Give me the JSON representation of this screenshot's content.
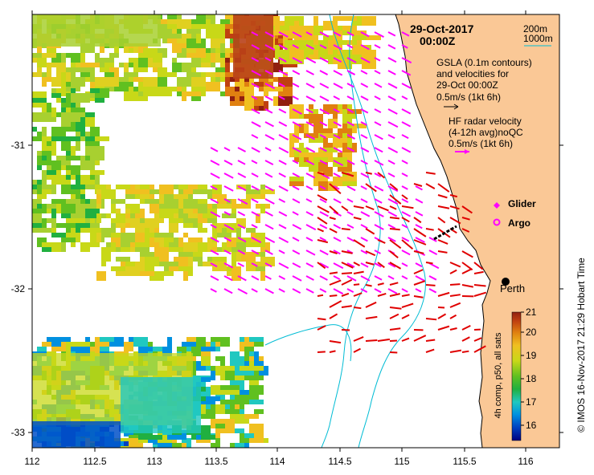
{
  "map": {
    "title_date": "29-Oct-2017",
    "title_time": "00:00Z",
    "longitude_ticks": [
      "112",
      "112.5",
      "113",
      "113.5",
      "114",
      "114.5",
      "115",
      "115.5",
      "116"
    ],
    "latitude_ticks": [
      "-31",
      "-32",
      "-33"
    ],
    "city_label": "Perth",
    "side_caption": "© IMOS 16-Nov-2017 21:29 Hobart Time"
  },
  "isobath_legend": {
    "line1": "200m",
    "line2": "1000m",
    "color_200m": "#00bcd4",
    "color_1000m": "#00bcd4"
  },
  "gsla_legend": {
    "line1": "GSLA (0.1m contours)",
    "line2": "and velocities for",
    "line3": "29-Oct 00:00Z",
    "line4": "0.5m/s (1kt 6h)"
  },
  "hf_legend": {
    "line1": "HF radar velocity",
    "line2": "(4-12h avg)noQC",
    "line3": "0.5m/s (1kt 6h)"
  },
  "markers_legend": {
    "glider_label": "Glider",
    "argo_label": "Argo"
  },
  "colorbar": {
    "label": "4h comp, p50, all sats",
    "ticks": [
      "21",
      "20",
      "19",
      "18",
      "17",
      "16"
    ],
    "min": 15.5,
    "max": 21,
    "colors": [
      "#000080",
      "#0040c0",
      "#0090e0",
      "#20c8c0",
      "#20b040",
      "#60c020",
      "#c8d818",
      "#f0c020",
      "#e08010",
      "#c04010",
      "#902010"
    ]
  },
  "colors": {
    "land": "#fac896",
    "ocean_gap": "#ffffff",
    "gsla_vectors": "#ff00ff",
    "hf_vectors": "#e00000",
    "isobath": "#00bcd4",
    "coast": "#000000"
  }
}
